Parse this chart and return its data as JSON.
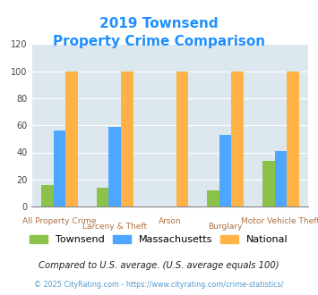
{
  "title_line1": "2019 Townsend",
  "title_line2": "Property Crime Comparison",
  "townsend": [
    16,
    14,
    0,
    12,
    34
  ],
  "massachusetts": [
    56,
    59,
    0,
    53,
    41
  ],
  "national": [
    100,
    100,
    100,
    100,
    100
  ],
  "colors": {
    "townsend": "#8bc34a",
    "massachusetts": "#4da6ff",
    "national": "#ffb347"
  },
  "ylim": [
    0,
    120
  ],
  "yticks": [
    0,
    20,
    40,
    60,
    80,
    100,
    120
  ],
  "legend_labels": [
    "Townsend",
    "Massachusetts",
    "National"
  ],
  "top_labels": [
    "",
    "Larceny & Theft",
    "",
    "Burglary",
    ""
  ],
  "bot_labels": [
    "All Property Crime",
    "",
    "Arson",
    "",
    "Motor Vehicle Theft"
  ],
  "footnote1": "Compared to U.S. average. (U.S. average equals 100)",
  "footnote2": "© 2025 CityRating.com - https://www.cityrating.com/crime-statistics/",
  "bg_color": "#dce8ee",
  "title_color": "#1e90ff",
  "label_color": "#b07040",
  "footnote1_color": "#222222",
  "footnote2_color": "#5599cc"
}
